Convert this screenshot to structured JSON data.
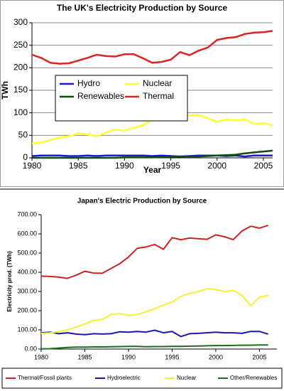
{
  "chart_data": [
    {
      "type": "line",
      "title": "The UK's Electricity Production by Source",
      "y_label": "TWh",
      "x_label": "Year",
      "x": [
        1980,
        1981,
        1982,
        1983,
        1984,
        1985,
        1986,
        1987,
        1988,
        1989,
        1990,
        1991,
        1992,
        1993,
        1994,
        1995,
        1996,
        1997,
        1998,
        1999,
        2000,
        2001,
        2002,
        2003,
        2004,
        2005,
        2006
      ],
      "xlim": [
        1980,
        2006
      ],
      "xticks": [
        1980,
        1985,
        1990,
        1995,
        2000,
        2005
      ],
      "ylim": [
        0,
        300
      ],
      "yticks": [
        0,
        50,
        100,
        150,
        200,
        250,
        300
      ],
      "grid": true,
      "legend": "inside",
      "series": [
        {
          "name": "Hydro",
          "color": "#1a1ad6",
          "values": [
            4,
            5,
            5,
            5,
            4,
            4,
            5,
            4,
            5,
            5,
            5,
            5,
            5,
            4,
            5,
            4,
            3,
            4,
            5,
            5,
            5,
            4,
            5,
            3,
            5,
            5,
            5
          ]
        },
        {
          "name": "Nuclear",
          "color": "#ffff33",
          "values": [
            32,
            34,
            40,
            45,
            48,
            54,
            52,
            48,
            56,
            63,
            60,
            67,
            72,
            85,
            84,
            85,
            92,
            94,
            95,
            88,
            80,
            85,
            83,
            85,
            75,
            77,
            72
          ]
        },
        {
          "name": "Renewables",
          "color": "#0b4d0b",
          "values": [
            0,
            0,
            0,
            0,
            0,
            0,
            0,
            0,
            0,
            0,
            1,
            1,
            1,
            1,
            2,
            2,
            3,
            3,
            3,
            4,
            5,
            6,
            7,
            10,
            12,
            14,
            16
          ]
        },
        {
          "name": "Thermal",
          "color": "#dd2222",
          "values": [
            229,
            222,
            211,
            209,
            210,
            216,
            222,
            229,
            226,
            225,
            230,
            230,
            221,
            211,
            213,
            218,
            235,
            228,
            238,
            245,
            262,
            266,
            268,
            275,
            278,
            279,
            282
          ]
        }
      ]
    },
    {
      "type": "line",
      "title": "Japan's Electric Production by Source",
      "y_label": "Electricity prod. (TWh)",
      "x": [
        1980,
        1981,
        1982,
        1983,
        1984,
        1985,
        1986,
        1987,
        1988,
        1989,
        1990,
        1991,
        1992,
        1993,
        1994,
        1995,
        1996,
        1997,
        1998,
        1999,
        2000,
        2001,
        2002,
        2003,
        2004,
        2005,
        2006
      ],
      "xlim": [
        1980,
        2007
      ],
      "xticks": [
        1980,
        1985,
        1990,
        1995,
        2000,
        2005
      ],
      "ylim": [
        0,
        700
      ],
      "yticks": [
        {
          "value": 0,
          "label": "0.00"
        },
        {
          "value": 100,
          "label": "100.00"
        },
        {
          "value": 200,
          "label": "200.00"
        },
        {
          "value": 300,
          "label": "300.00"
        },
        {
          "value": 400,
          "label": "400.00"
        },
        {
          "value": 500,
          "label": "500.00"
        },
        {
          "value": 600,
          "label": "600.00"
        },
        {
          "value": 700,
          "label": "700.00"
        }
      ],
      "grid": false,
      "legend": "bottom",
      "series": [
        {
          "name": "Thermal/Fossil plants",
          "color": "#cc2222",
          "values": [
            380,
            378,
            375,
            368,
            385,
            405,
            396,
            395,
            420,
            445,
            480,
            525,
            532,
            545,
            520,
            580,
            570,
            578,
            575,
            572,
            595,
            585,
            570,
            615,
            640,
            630,
            645
          ]
        },
        {
          "name": "Hydroelectric",
          "color": "#1a1aaa",
          "values": [
            85,
            88,
            80,
            85,
            78,
            75,
            80,
            78,
            80,
            90,
            88,
            92,
            88,
            98,
            85,
            92,
            65,
            80,
            82,
            85,
            88,
            85,
            85,
            82,
            92,
            92,
            78
          ]
        },
        {
          "name": "Nuclear",
          "color": "#f2f233",
          "values": [
            82,
            84,
            90,
            100,
            115,
            130,
            148,
            155,
            180,
            185,
            175,
            180,
            195,
            210,
            230,
            245,
            275,
            290,
            300,
            315,
            310,
            300,
            305,
            280,
            225,
            270,
            280
          ]
        },
        {
          "name": "Other/Renewables",
          "color": "#1a6e1a",
          "values": [
            1,
            2,
            5,
            8,
            10,
            10,
            11,
            11,
            12,
            13,
            14,
            14,
            12,
            13,
            13,
            14,
            14,
            15,
            16,
            17,
            18,
            18,
            19,
            20,
            20,
            21,
            21
          ]
        }
      ]
    }
  ]
}
